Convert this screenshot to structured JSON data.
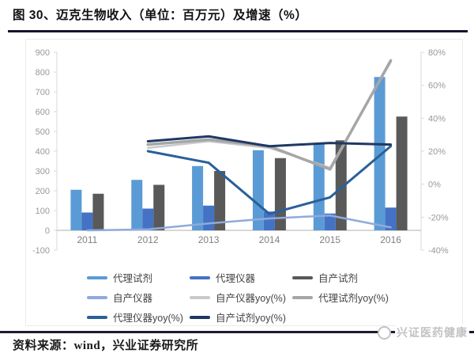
{
  "title": "图 30、迈克生物收入（单位：百万元）及增速（%）",
  "source_note": "资料来源：wind，兴业证券研究所",
  "watermark": "兴证医药健康",
  "colors": {
    "title_text": "#111111",
    "rule_dark": "#15152e",
    "axis_label": "#999999",
    "year_label": "#808080",
    "axis_line": "#d9d9d9",
    "baseline": "#bfbfbf",
    "legend_text": "#444444",
    "watermark_gray": "#c2c2c2"
  },
  "chart_data": {
    "type": "bar+line combo",
    "title": "迈克生物收入（单位：百万元）及增速（%）",
    "categories": [
      "2011",
      "2012",
      "2013",
      "2014",
      "2015",
      "2016"
    ],
    "left_axis": {
      "min": -100,
      "max": 900,
      "step": 100,
      "label": "百万元"
    },
    "right_axis": {
      "min": -40,
      "max": 80,
      "step": 20,
      "suffix": "%"
    },
    "grid": false,
    "legend_position": "bottom",
    "bar_series": [
      {
        "name": "代理试剂",
        "color": "#5b9bd5",
        "axis": "left",
        "values": [
          205,
          255,
          325,
          405,
          435,
          775
        ]
      },
      {
        "name": "代理仪器",
        "color": "#4472c4",
        "axis": "left",
        "values": [
          90,
          110,
          125,
          95,
          85,
          115
        ]
      },
      {
        "name": "自产试剂",
        "color": "#595959",
        "axis": "left",
        "values": [
          185,
          230,
          300,
          365,
          455,
          575
        ]
      }
    ],
    "line_series": [
      {
        "name": "自产仪器",
        "color": "#8faadc",
        "axis": "left",
        "width": 2.5,
        "values": [
          0,
          5,
          35,
          60,
          75,
          15
        ]
      },
      {
        "name": "自产仪器yoy(%)",
        "color": "#c9c9c9",
        "axis": "right",
        "width": 2.5,
        "values": [
          null,
          22,
          26,
          22,
          10,
          74
        ]
      },
      {
        "name": "代理试剂yoy(%)",
        "color": "#a6a6a6",
        "axis": "right",
        "width": 3.5,
        "values": [
          null,
          24,
          27,
          23,
          9,
          75
        ]
      },
      {
        "name": "代理仪器yoy(%)",
        "color": "#2a6099",
        "axis": "right",
        "width": 3,
        "values": [
          null,
          20,
          13,
          -18,
          -8,
          23
        ]
      },
      {
        "name": "自产试剂yoy(%)",
        "color": "#1f3864",
        "axis": "right",
        "width": 3,
        "values": [
          null,
          26,
          29,
          23,
          25,
          24
        ]
      }
    ],
    "legend_rows": [
      [
        "代理试剂",
        "代理仪器",
        "自产试剂"
      ],
      [
        "自产仪器",
        "自产仪器yoy(%)",
        "代理试剂yoy(%)"
      ],
      [
        "代理仪器yoy(%)",
        "自产试剂yoy(%)"
      ]
    ]
  }
}
